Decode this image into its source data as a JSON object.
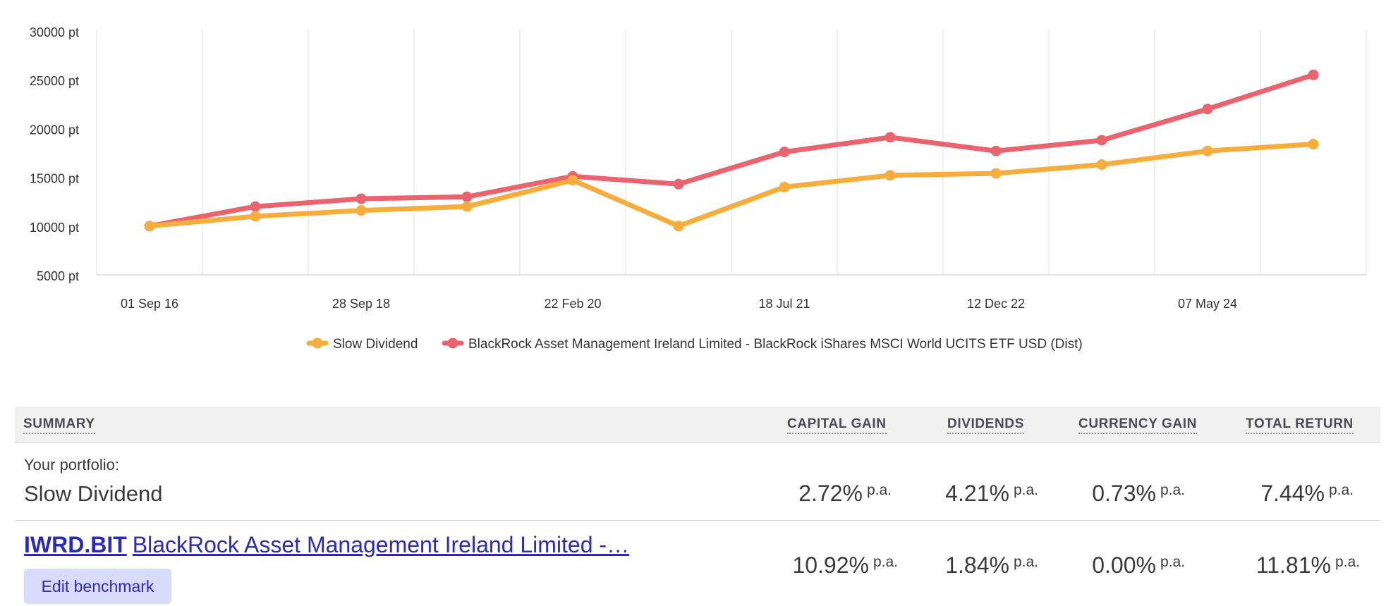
{
  "chart_data": {
    "type": "line",
    "y_ticks": [
      "30000 pt",
      "25000 pt",
      "20000 pt",
      "15000 pt",
      "10000 pt",
      "5000 pt"
    ],
    "x_labels": [
      "01 Sep 16",
      "28 Sep 18",
      "22 Feb 20",
      "18 Jul 21",
      "12 Dec 22",
      "07 May 24"
    ],
    "ylim": [
      5000,
      30000
    ],
    "grid": "vertical",
    "legend_position": "bottom",
    "series": [
      {
        "name": "Slow Dividend",
        "color": "#f6ad3b",
        "values": [
          10000,
          11000,
          11600,
          12000,
          14700,
          10000,
          14000,
          15200,
          15400,
          16300,
          17700,
          18400
        ]
      },
      {
        "name": "BlackRock Asset Management Ireland Limited - BlackRock iShares MSCI World UCITS ETF USD (Dist)",
        "color": "#e9646e",
        "values": [
          10000,
          12000,
          12800,
          13000,
          15100,
          14300,
          17600,
          19100,
          17700,
          18800,
          22000,
          25500
        ]
      }
    ]
  },
  "summary": {
    "headers": {
      "summary": "SUMMARY",
      "capital_gain": "CAPITAL GAIN",
      "dividends": "DIVIDENDS",
      "currency_gain": "CURRENCY GAIN",
      "total_return": "TOTAL RETURN"
    },
    "portfolio": {
      "label": "Your portfolio:",
      "name": "Slow Dividend",
      "capital_gain": "2.72%",
      "dividends": "4.21%",
      "currency_gain": "0.73%",
      "total_return": "7.44%"
    },
    "benchmark": {
      "ticker": "IWRD.BIT",
      "name": "BlackRock Asset Management Ireland Limited -…",
      "capital_gain": "10.92%",
      "dividends": "1.84%",
      "currency_gain": "0.00%",
      "total_return": "11.81%",
      "edit_label": "Edit benchmark"
    },
    "pa": "p.a."
  }
}
